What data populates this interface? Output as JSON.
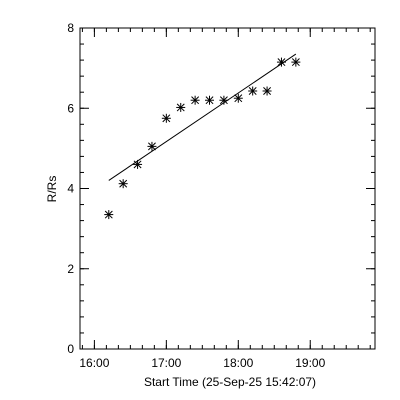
{
  "chart_data": {
    "type": "scatter",
    "xlabel": "Start Time (25-Sep-25 15:42:07)",
    "ylabel": "R/Rs",
    "xlim": [
      "15:48",
      "19:54"
    ],
    "ylim": [
      0,
      8
    ],
    "x_ticks": [
      "16:00",
      "17:00",
      "18:00",
      "19:00"
    ],
    "y_ticks": [
      "0",
      "2",
      "4",
      "6",
      "8"
    ],
    "minor_x_step_minutes": 10,
    "minor_y_step": 0.4,
    "grid": false,
    "legend": "none",
    "marker": "asterisk",
    "series": [
      {
        "x": [
          "16:12",
          "16:24",
          "16:36",
          "16:48",
          "17:00",
          "17:12",
          "17:24",
          "17:36",
          "17:48",
          "18:00",
          "18:12",
          "18:24",
          "18:36",
          "18:48"
        ],
        "y": [
          3.35,
          4.12,
          4.6,
          5.05,
          5.75,
          6.02,
          6.2,
          6.2,
          6.2,
          6.25,
          6.43,
          6.43,
          7.15,
          7.15
        ]
      }
    ],
    "fit_line": {
      "x": [
        "16:12",
        "18:48"
      ],
      "y": [
        4.2,
        7.35
      ]
    }
  }
}
